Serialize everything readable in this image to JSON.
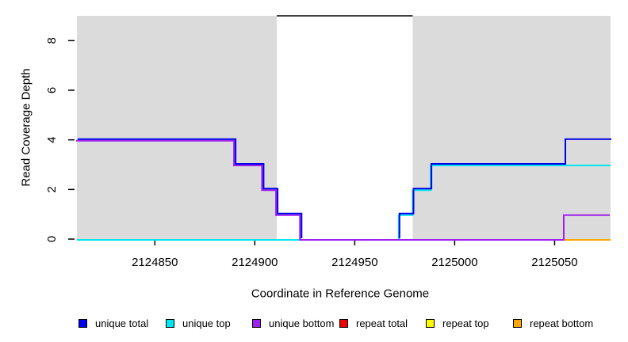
{
  "figure": {
    "background": "#FFFFFF",
    "plot_bg_gray": "#DBDBDB"
  },
  "chart_data": {
    "type": "line",
    "subtype": "step-coverage",
    "title": "",
    "xlabel": "Coordinate in Reference Genome",
    "ylabel": "Read Coverage Depth",
    "xlim": [
      2124811,
      2125078
    ],
    "ylim": [
      0,
      9
    ],
    "xticks": [
      2124850,
      2124900,
      2124950,
      2125000,
      2125050
    ],
    "yticks": [
      0,
      2,
      4,
      6,
      8
    ],
    "grid": "off",
    "legend_position": "bottom",
    "shaded_regions": [
      {
        "name": "covered-left",
        "x1": 2124811,
        "x2": 2124911,
        "color": "#DBDBDB"
      },
      {
        "name": "covered-right",
        "x1": 2124979,
        "x2": 2125078,
        "color": "#DBDBDB"
      }
    ],
    "gap_region": {
      "x1": 2124911,
      "x2": 2124979
    },
    "annotation_line": {
      "x1": 2124911,
      "x2": 2124979,
      "y": 9,
      "color": "#000000"
    },
    "series": [
      {
        "id": "repeat-bottom",
        "label": "repeat bottom",
        "color": "#FFA500",
        "paths": [
          [
            [
              2125055,
              0
            ],
            [
              2125078,
              0
            ]
          ]
        ]
      },
      {
        "id": "unique-top",
        "label": "unique top",
        "color": "#00E5EE",
        "paths": [
          [
            [
              2124811,
              0
            ],
            [
              2124972,
              0
            ],
            [
              2124972,
              1
            ],
            [
              2124979,
              1
            ],
            [
              2124979,
              2
            ],
            [
              2124988,
              2
            ],
            [
              2124988,
              3
            ],
            [
              2125078,
              3
            ]
          ]
        ]
      },
      {
        "id": "unique-bottom",
        "label": "unique bottom",
        "color": "#A020F0",
        "paths": [
          [
            [
              2124811,
              4
            ],
            [
              2124890,
              4
            ],
            [
              2124890,
              3
            ],
            [
              2124904,
              3
            ],
            [
              2124904,
              2
            ],
            [
              2124911,
              2
            ],
            [
              2124911,
              1
            ],
            [
              2124923,
              1
            ],
            [
              2124923,
              0
            ],
            [
              2125055,
              0
            ],
            [
              2125055,
              1
            ],
            [
              2125078,
              1
            ]
          ]
        ]
      },
      {
        "id": "unique-total",
        "label": "unique total",
        "color": "#0000E6",
        "paths": [
          [
            [
              2124811,
              4
            ],
            [
              2124890,
              4
            ],
            [
              2124890,
              3
            ],
            [
              2124904,
              3
            ],
            [
              2124904,
              2
            ],
            [
              2124911,
              2
            ],
            [
              2124911,
              1
            ],
            [
              2124923,
              1
            ],
            [
              2124923,
              0
            ]
          ],
          [
            [
              2124972,
              0
            ],
            [
              2124972,
              1
            ],
            [
              2124979,
              1
            ],
            [
              2124979,
              2
            ],
            [
              2124988,
              2
            ],
            [
              2124988,
              3
            ],
            [
              2125055,
              3
            ],
            [
              2125055,
              4
            ],
            [
              2125078,
              4
            ]
          ]
        ]
      }
    ],
    "legend": [
      {
        "id": "unique-total",
        "label": "unique total",
        "color": "#0000EE"
      },
      {
        "id": "unique-top",
        "label": "unique top",
        "color": "#00E5EE"
      },
      {
        "id": "unique-bottom",
        "label": "unique bottom",
        "color": "#A020F0"
      },
      {
        "id": "repeat-total",
        "label": "repeat total",
        "color": "#EE0000"
      },
      {
        "id": "repeat-top",
        "label": "repeat top",
        "color": "#FFFF00"
      },
      {
        "id": "repeat-bottom",
        "label": "repeat bottom",
        "color": "#FFA500"
      }
    ]
  }
}
